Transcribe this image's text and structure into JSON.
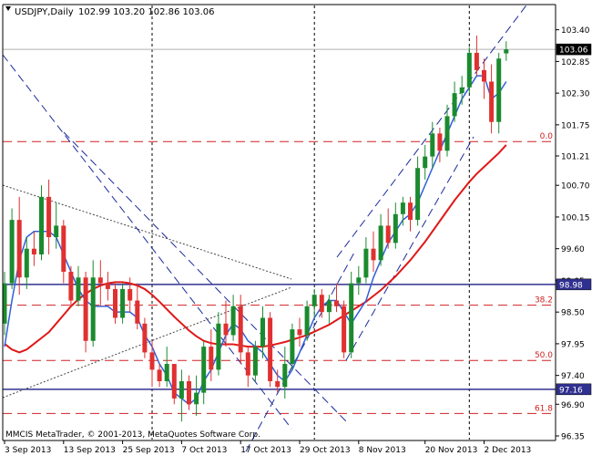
{
  "window": {
    "symbol_caption": "USDJPY,Daily",
    "ohlc_caption": "102.99 103.20 102.86 103.06",
    "copyright": "MMCIS MetaTrader, © 2001-2013, MetaQuotes Software Corp."
  },
  "colors": {
    "background": "#ffffff",
    "axis": "#000000",
    "grid_vertical": "#000000",
    "bull_candle": "#1b8a2e",
    "bear_candle": "#e03030",
    "fast_ma": "#3060d8",
    "slow_ma": "#e01818",
    "horizontal_level": "#303090",
    "fib_line": "#d02020",
    "trend_line": "#1a2a9a",
    "fan_line": "#444444"
  },
  "chart_data": {
    "type": "candlestick",
    "symbol": "USDJPY",
    "timeframe": "Daily",
    "ylim": [
      96.35,
      103.6
    ],
    "y_ticks": [
      103.4,
      102.85,
      102.3,
      101.75,
      101.21,
      100.7,
      100.15,
      99.6,
      99.05,
      98.5,
      97.95,
      97.4,
      96.9,
      96.35
    ],
    "y_tick_labels": [
      "103.40",
      "102.85",
      "102.30",
      "101.75",
      "101.21",
      "100.70",
      "100.15",
      "99.60",
      "99.05",
      "98.50",
      "97.95",
      "97.40",
      "96.90",
      "96.35"
    ],
    "x_labels": [
      {
        "label": "3 Sep 2013",
        "bar": 0
      },
      {
        "label": "13 Sep 2013",
        "bar": 8
      },
      {
        "label": "25 Sep 2013",
        "bar": 16
      },
      {
        "label": "7 Oct 2013",
        "bar": 24
      },
      {
        "label": "17 Oct 2013",
        "bar": 32
      },
      {
        "label": "29 Oct 2013",
        "bar": 40
      },
      {
        "label": "8 Nov 2013",
        "bar": 48
      },
      {
        "label": "20 Nov 2013",
        "bar": 57
      },
      {
        "label": "2 Dec 2013",
        "bar": 65
      }
    ],
    "vertical_separators_bar": [
      20,
      42,
      63
    ],
    "current_price": {
      "value": 103.06,
      "label": "103.06"
    },
    "horizontal_levels": [
      {
        "value": 98.98,
        "label": "98.98"
      },
      {
        "value": 97.16,
        "label": "97.16"
      }
    ],
    "fibonacci_levels": [
      {
        "value": 101.46,
        "label": "0.0"
      },
      {
        "value": 98.62,
        "label": "38.2"
      },
      {
        "value": 97.66,
        "label": "50.0"
      },
      {
        "value": 96.74,
        "label": "61.8"
      }
    ],
    "candles": [
      [
        98.3,
        99.2,
        98.1,
        99.0
      ],
      [
        99.0,
        100.3,
        98.9,
        100.1
      ],
      [
        100.1,
        100.5,
        98.8,
        99.1
      ],
      [
        99.1,
        99.8,
        98.9,
        99.6
      ],
      [
        99.6,
        99.9,
        99.3,
        99.5
      ],
      [
        99.5,
        100.7,
        99.4,
        100.5
      ],
      [
        100.5,
        100.8,
        99.5,
        99.8
      ],
      [
        99.8,
        100.4,
        99.6,
        100.0
      ],
      [
        100.0,
        100.1,
        99.0,
        99.2
      ],
      [
        99.2,
        99.3,
        98.6,
        98.7
      ],
      [
        98.7,
        99.3,
        98.6,
        99.1
      ],
      [
        99.1,
        99.2,
        97.8,
        98.0
      ],
      [
        98.0,
        99.4,
        97.9,
        99.1
      ],
      [
        99.1,
        99.4,
        98.6,
        99.0
      ],
      [
        99.0,
        99.2,
        98.7,
        98.9
      ],
      [
        98.9,
        99.0,
        98.3,
        98.4
      ],
      [
        98.4,
        99.0,
        98.3,
        98.9
      ],
      [
        98.9,
        99.1,
        98.5,
        98.7
      ],
      [
        98.7,
        99.0,
        98.2,
        98.3
      ],
      [
        98.3,
        98.4,
        97.7,
        97.8
      ],
      [
        97.8,
        98.0,
        97.2,
        97.5
      ],
      [
        97.5,
        97.6,
        97.2,
        97.3
      ],
      [
        97.3,
        97.9,
        97.2,
        97.6
      ],
      [
        97.6,
        97.6,
        96.9,
        97.0
      ],
      [
        97.0,
        97.5,
        96.6,
        97.3
      ],
      [
        97.3,
        97.4,
        96.8,
        96.9
      ],
      [
        96.9,
        97.4,
        96.7,
        97.1
      ],
      [
        97.1,
        98.0,
        96.9,
        97.9
      ],
      [
        97.9,
        98.2,
        97.3,
        97.5
      ],
      [
        97.5,
        98.5,
        97.4,
        98.3
      ],
      [
        98.3,
        98.7,
        97.9,
        98.1
      ],
      [
        98.1,
        98.8,
        98.0,
        98.6
      ],
      [
        98.6,
        98.8,
        97.6,
        97.8
      ],
      [
        97.8,
        97.9,
        97.2,
        97.4
      ],
      [
        97.4,
        98.0,
        97.3,
        97.9
      ],
      [
        97.9,
        98.6,
        97.7,
        98.4
      ],
      [
        98.4,
        98.5,
        97.2,
        97.3
      ],
      [
        97.3,
        97.5,
        97.1,
        97.2
      ],
      [
        97.2,
        97.9,
        97.0,
        97.6
      ],
      [
        97.6,
        98.3,
        97.5,
        98.2
      ],
      [
        98.2,
        98.4,
        97.9,
        98.1
      ],
      [
        98.1,
        98.7,
        98.0,
        98.6
      ],
      [
        98.6,
        98.9,
        98.4,
        98.8
      ],
      [
        98.8,
        98.9,
        98.4,
        98.5
      ],
      [
        98.5,
        98.8,
        98.3,
        98.7
      ],
      [
        98.7,
        99.0,
        98.5,
        98.6
      ],
      [
        98.6,
        98.7,
        97.7,
        97.8
      ],
      [
        97.8,
        99.2,
        97.7,
        99.0
      ],
      [
        99.0,
        99.3,
        98.8,
        99.1
      ],
      [
        99.1,
        99.8,
        99.0,
        99.6
      ],
      [
        99.6,
        99.9,
        99.2,
        99.4
      ],
      [
        99.4,
        100.2,
        99.3,
        100.0
      ],
      [
        100.0,
        100.3,
        99.6,
        99.7
      ],
      [
        99.7,
        100.4,
        99.6,
        100.2
      ],
      [
        100.2,
        100.5,
        100.0,
        100.4
      ],
      [
        100.4,
        100.5,
        99.9,
        100.1
      ],
      [
        100.1,
        101.2,
        100.0,
        101.0
      ],
      [
        101.0,
        101.4,
        100.8,
        101.2
      ],
      [
        101.2,
        101.8,
        101.0,
        101.6
      ],
      [
        101.6,
        101.7,
        101.1,
        101.3
      ],
      [
        101.3,
        102.1,
        101.2,
        101.9
      ],
      [
        101.9,
        102.5,
        101.8,
        102.3
      ],
      [
        102.3,
        102.6,
        102.1,
        102.4
      ],
      [
        102.4,
        103.1,
        102.3,
        103.0
      ],
      [
        103.0,
        103.3,
        102.6,
        102.7
      ],
      [
        102.7,
        102.9,
        102.2,
        102.5
      ],
      [
        102.5,
        102.8,
        101.6,
        101.8
      ],
      [
        101.8,
        103.0,
        101.6,
        102.9
      ],
      [
        102.99,
        103.2,
        102.86,
        103.06
      ]
    ],
    "fast_ma": [
      97.9,
      98.7,
      99.4,
      99.8,
      99.9,
      99.9,
      99.9,
      99.8,
      99.5,
      99.2,
      98.9,
      98.7,
      98.6,
      98.6,
      98.6,
      98.5,
      98.5,
      98.5,
      98.4,
      98.1,
      97.9,
      97.6,
      97.4,
      97.1,
      97.0,
      96.9,
      97.0,
      97.3,
      97.5,
      97.8,
      98.1,
      98.3,
      98.2,
      98.0,
      97.9,
      97.8,
      97.6,
      97.4,
      97.3,
      97.5,
      97.8,
      98.1,
      98.4,
      98.6,
      98.7,
      98.7,
      98.5,
      98.3,
      98.5,
      98.7,
      99.1,
      99.4,
      99.7,
      99.9,
      100.1,
      100.2,
      100.4,
      100.7,
      101.0,
      101.3,
      101.6,
      101.9,
      102.2,
      102.4,
      102.6,
      102.6,
      102.2,
      102.3,
      102.5
    ],
    "slow_ma": [
      97.95,
      97.85,
      97.8,
      97.85,
      97.95,
      98.05,
      98.15,
      98.3,
      98.45,
      98.6,
      98.72,
      98.82,
      98.9,
      98.96,
      99.0,
      99.02,
      99.02,
      99.0,
      98.96,
      98.9,
      98.8,
      98.68,
      98.55,
      98.42,
      98.3,
      98.18,
      98.08,
      98.0,
      97.96,
      97.94,
      97.94,
      97.94,
      97.92,
      97.9,
      97.9,
      97.9,
      97.92,
      97.95,
      97.98,
      98.02,
      98.06,
      98.1,
      98.16,
      98.22,
      98.28,
      98.36,
      98.44,
      98.52,
      98.6,
      98.68,
      98.78,
      98.88,
      99.0,
      99.12,
      99.26,
      99.4,
      99.56,
      99.72,
      99.9,
      100.08,
      100.26,
      100.44,
      100.6,
      100.76,
      100.9,
      101.02,
      101.14,
      101.26,
      101.4
    ]
  }
}
